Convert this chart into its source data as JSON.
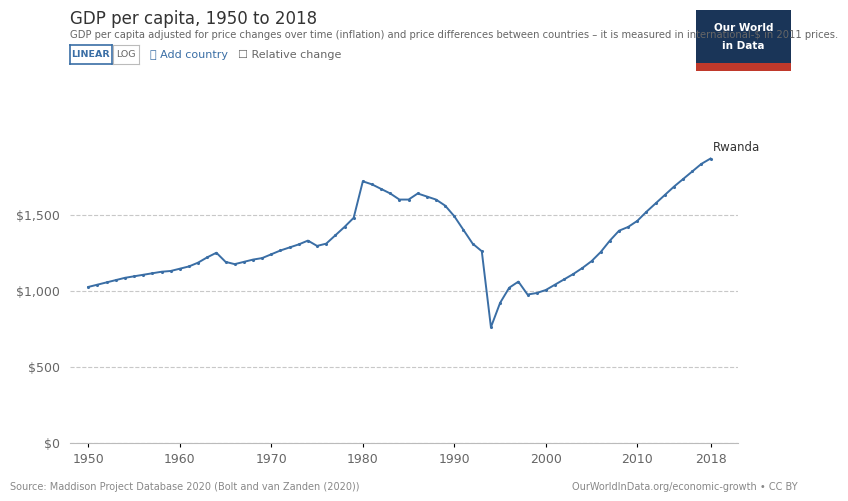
{
  "title": "GDP per capita, 1950 to 2018",
  "subtitle": "GDP per capita adjusted for price changes over time (inflation) and price differences between countries – it is measured in international-$ in 2011 prices.",
  "source_left": "Source: Maddison Project Database 2020 (Bolt and van Zanden (2020))",
  "source_right": "OurWorldInData.org/economic-growth • CC BY",
  "country_label": "Rwanda",
  "line_color": "#3a6ea5",
  "background_color": "#ffffff",
  "grid_color": "#c8c8c8",
  "ytick_labels": [
    "$0",
    "$500",
    "$1,000",
    "$1,500"
  ],
  "ytick_values": [
    0,
    500,
    1000,
    1500
  ],
  "xtick_values": [
    1950,
    1960,
    1970,
    1980,
    1990,
    2000,
    2010,
    2018
  ],
  "ylim": [
    0,
    1950
  ],
  "xlim": [
    1948,
    2021
  ],
  "years": [
    1950,
    1951,
    1952,
    1953,
    1954,
    1955,
    1956,
    1957,
    1958,
    1959,
    1960,
    1961,
    1962,
    1963,
    1964,
    1965,
    1966,
    1967,
    1968,
    1969,
    1970,
    1971,
    1972,
    1973,
    1974,
    1975,
    1976,
    1977,
    1978,
    1979,
    1980,
    1981,
    1982,
    1983,
    1984,
    1985,
    1986,
    1987,
    1988,
    1989,
    1990,
    1991,
    1992,
    1993,
    1994,
    1995,
    1996,
    1997,
    1998,
    1999,
    2000,
    2001,
    2002,
    2003,
    2004,
    2005,
    2006,
    2007,
    2008,
    2009,
    2010,
    2011,
    2012,
    2013,
    2014,
    2015,
    2016,
    2017,
    2018
  ],
  "gdp": [
    1025,
    1040,
    1055,
    1070,
    1085,
    1095,
    1105,
    1115,
    1125,
    1130,
    1145,
    1160,
    1185,
    1220,
    1250,
    1190,
    1175,
    1190,
    1205,
    1215,
    1240,
    1265,
    1285,
    1305,
    1330,
    1295,
    1310,
    1365,
    1420,
    1480,
    1720,
    1700,
    1670,
    1640,
    1600,
    1600,
    1640,
    1620,
    1600,
    1560,
    1490,
    1400,
    1310,
    1260,
    760,
    920,
    1020,
    1060,
    975,
    985,
    1005,
    1040,
    1075,
    1110,
    1150,
    1195,
    1255,
    1330,
    1395,
    1420,
    1460,
    1520,
    1575,
    1630,
    1685,
    1735,
    1785,
    1835,
    1870
  ]
}
